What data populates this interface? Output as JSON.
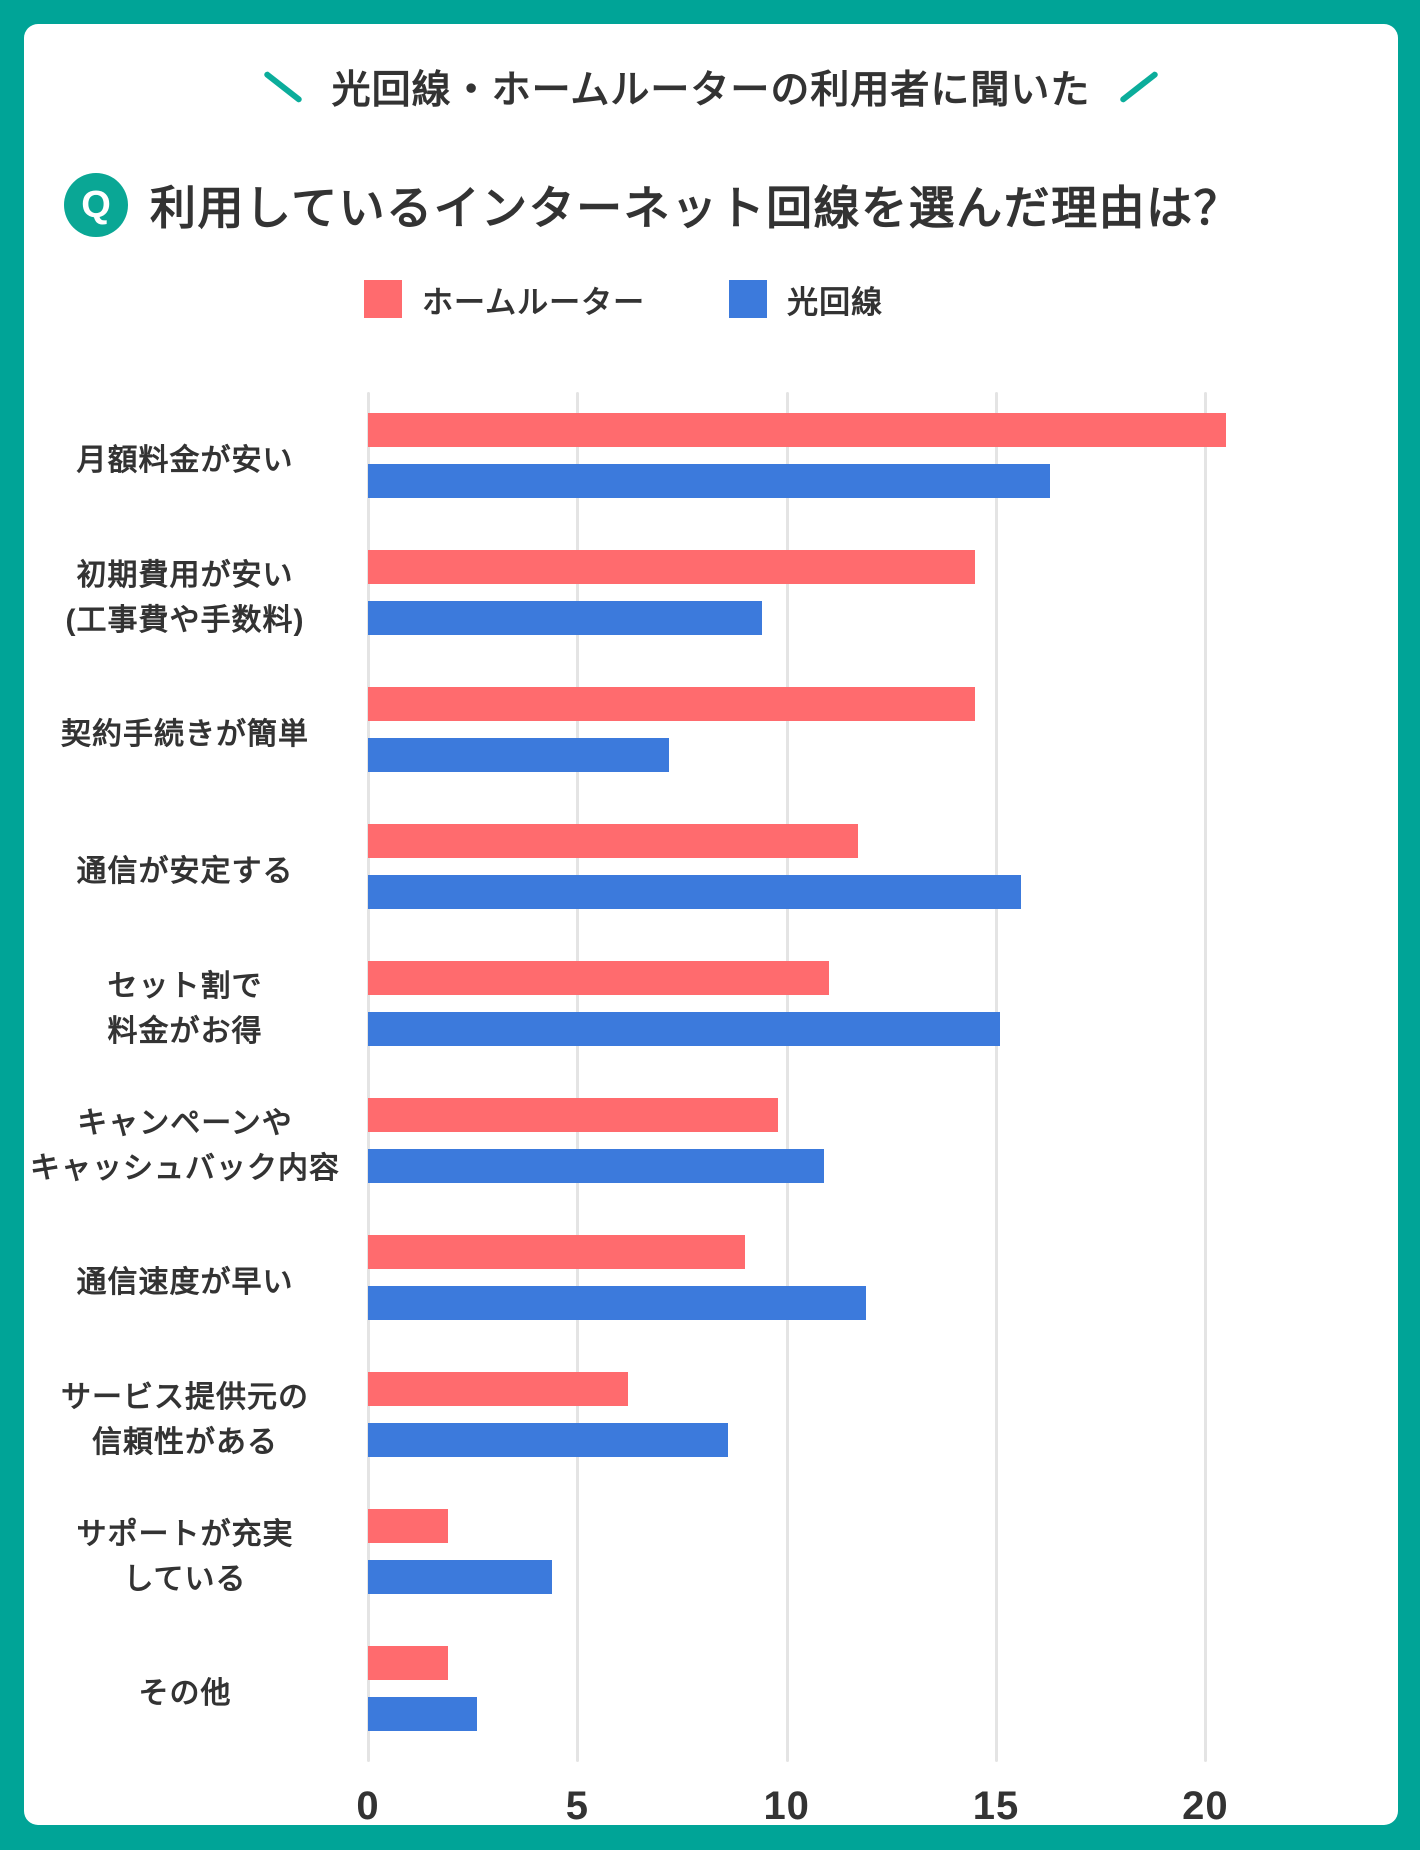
{
  "frame": {
    "border_color": "#00A497",
    "card_color": "#FFFFFF"
  },
  "header": {
    "catch": "光回線・ホームルーターの利用者に聞いた"
  },
  "title": {
    "badge": "Q",
    "text": "利用しているインターネット回線を選んだ理由は？"
  },
  "chart_data": {
    "type": "bar",
    "orientation": "horizontal",
    "title": "利用しているインターネット回線を選んだ理由は？",
    "categories": [
      [
        "月額料金が安い"
      ],
      [
        "初期費用が安い",
        "(工事費や手数料)"
      ],
      [
        "契約手続きが簡単"
      ],
      [
        "通信が安定する"
      ],
      [
        "セット割で",
        "料金がお得"
      ],
      [
        "キャンペーンや",
        "キャッシュバック内容"
      ],
      [
        "通信速度が早い"
      ],
      [
        "サービス提供元の",
        "信頼性がある"
      ],
      [
        "サポートが充実",
        "している"
      ],
      [
        "その他"
      ]
    ],
    "series": [
      {
        "name": "ホームルーター",
        "color": "#FF6B6E",
        "values": [
          20.5,
          14.5,
          14.5,
          11.7,
          11.0,
          9.8,
          9.0,
          6.2,
          1.9,
          1.9
        ]
      },
      {
        "name": "光回線",
        "color": "#3C7ADC",
        "values": [
          16.3,
          9.4,
          7.2,
          15.6,
          15.1,
          10.9,
          11.9,
          8.6,
          4.4,
          2.6
        ]
      }
    ],
    "x_ticks": [
      0,
      5,
      10,
      15,
      20
    ],
    "x_max": 24.6,
    "grid": true,
    "gridline_color": "#E4E4E4",
    "legend_position": "top",
    "text_color": "#333333"
  }
}
